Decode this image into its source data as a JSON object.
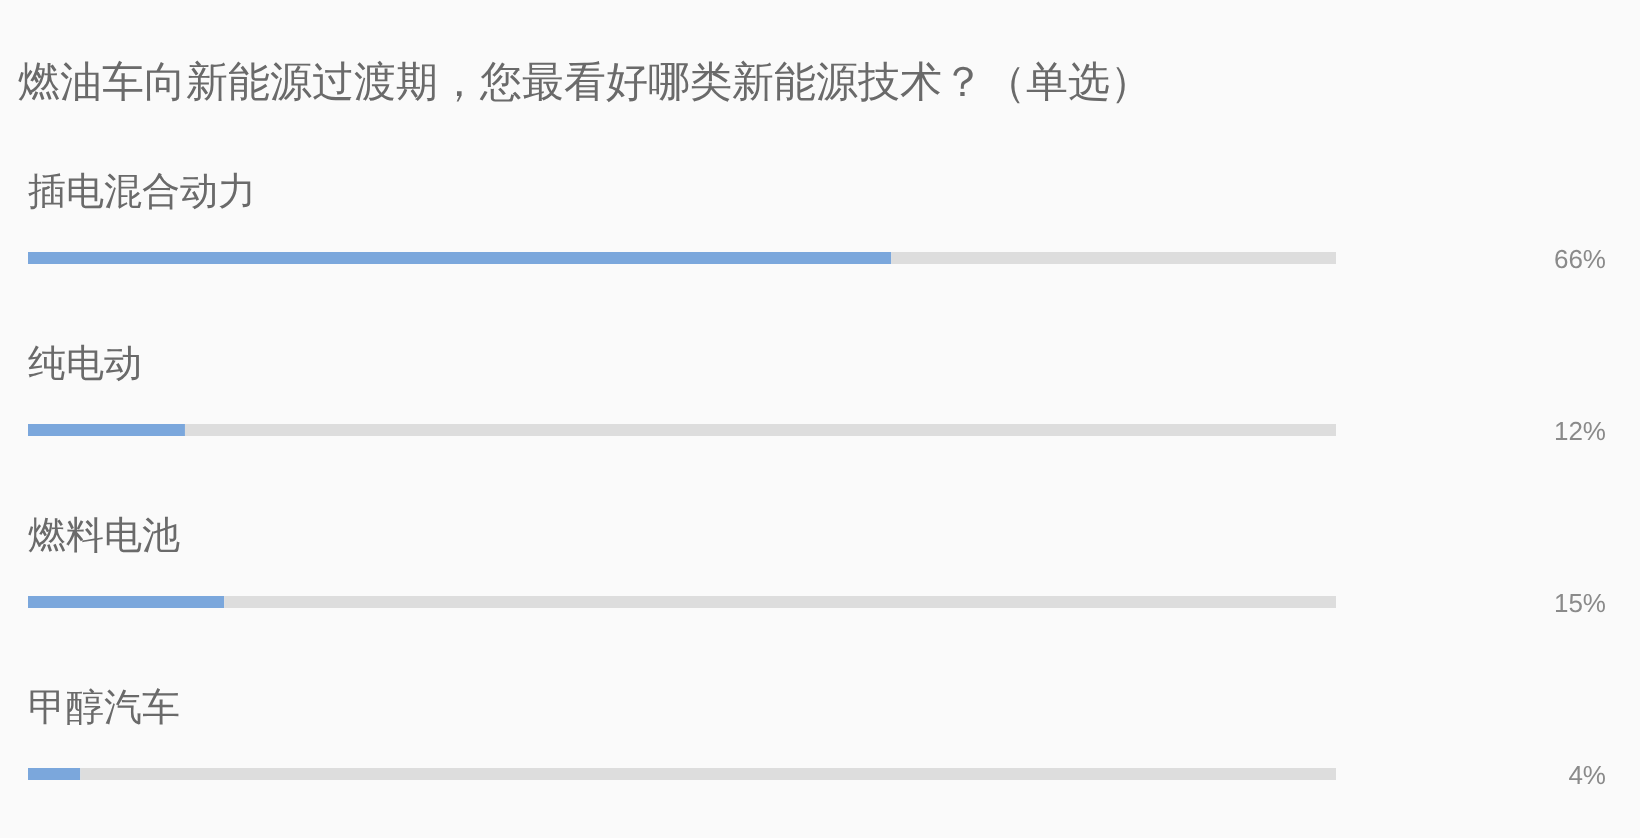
{
  "chart_data": {
    "type": "bar",
    "orientation": "horizontal",
    "stacked": true,
    "title": "燃油车向新能源过渡期，您最看好哪类新能源技术？（单选）",
    "categories": [
      "插电混合动力",
      "纯电动",
      "燃料电池",
      "甲醇汽车"
    ],
    "series": [
      {
        "color": "#7ba7dc",
        "values": [
          66,
          12,
          15,
          4
        ],
        "value_labels": [
          "66%",
          "12%",
          "15%",
          "4%"
        ]
      },
      {
        "color": "#dddddd",
        "values": [
          34,
          88,
          85,
          96
        ]
      }
    ],
    "xlim": [
      0,
      100
    ],
    "tick_labels": "y"
  }
}
